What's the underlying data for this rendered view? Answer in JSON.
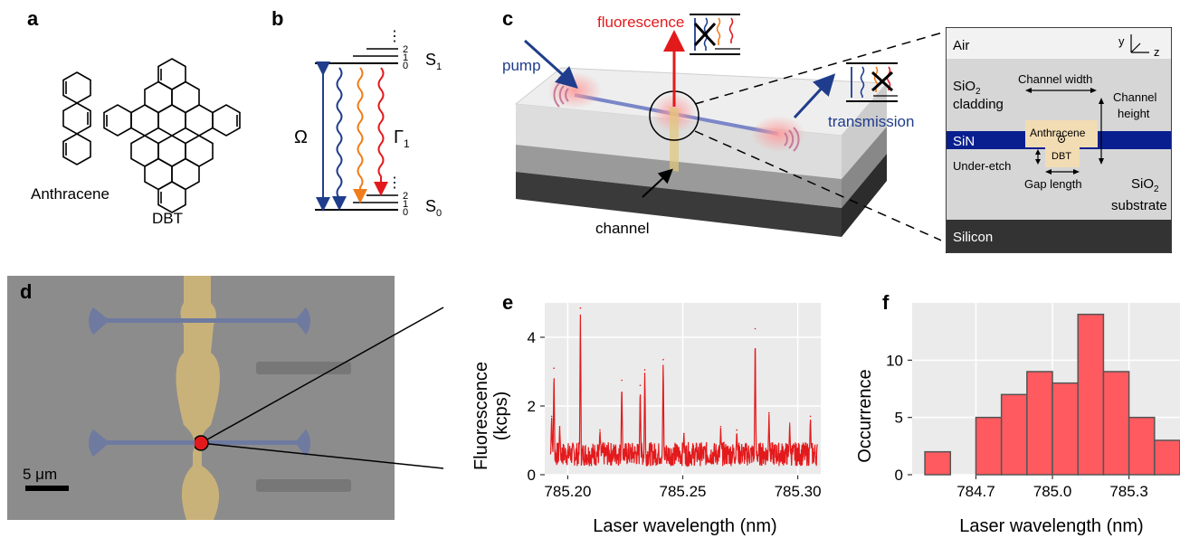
{
  "panels": {
    "a": {
      "label": "a",
      "molecules": [
        "Anthracene",
        "DBT"
      ]
    },
    "b": {
      "label": "b",
      "upper_state": "S",
      "upper_sub": "1",
      "lower_state": "S",
      "lower_sub": "0",
      "omega": "Ω",
      "gamma": "Γ",
      "gamma_sub": "1",
      "vib_levels": [
        "0",
        "1",
        "2"
      ],
      "dots": "⋮"
    },
    "c": {
      "label": "c",
      "fluorescence": "fluorescence",
      "pump": "pump",
      "transmission": "transmission",
      "channel": "channel",
      "cross_section": {
        "air": "Air",
        "sio2_top": "SiO",
        "sio2_top_sub": "2",
        "cladding": "cladding",
        "channel_width": "Channel width",
        "channel_height_1": "Channel",
        "channel_height_2": "height",
        "anthracene": "Anthracene",
        "sin": "SiN",
        "dbt": "DBT",
        "under_etch": "Under-etch",
        "gap_length": "Gap length",
        "sio2_bot": "SiO",
        "sio2_bot_sub": "2",
        "substrate": "substrate",
        "silicon": "Silicon",
        "axis_y": "y",
        "axis_z": "z"
      }
    },
    "d": {
      "label": "d",
      "scalebar": "5 μm"
    },
    "e": {
      "label": "e",
      "ylabel_1": "Fluorescence",
      "ylabel_2": "(kcps)",
      "xlabel": "Laser wavelength (nm)"
    },
    "f": {
      "label": "f",
      "ylabel": "Occurrence",
      "xlabel": "Laser wavelength (nm)"
    }
  },
  "colors": {
    "pump_blue": "#1f3d8c",
    "fluorescence_red": "#e31a1c",
    "orange": "#f07d1a",
    "sin_blue": "#0a1f8f",
    "anthracene": "#f2dcb3",
    "hist_fill": "#ff5a5f",
    "plot_bg": "#ebebeb"
  },
  "chart_data": [
    {
      "type": "line",
      "panel": "e",
      "xlabel": "Laser wavelength (nm)",
      "ylabel": "Fluorescence (kcps)",
      "xlim": [
        785.19,
        785.31
      ],
      "ylim": [
        0,
        5
      ],
      "xticks": [
        "785.20",
        "785.25",
        "785.30"
      ],
      "yticks": [
        "0",
        "2",
        "4"
      ],
      "baseline": 0.6,
      "series": [
        {
          "color": "#e31a1c",
          "peaks": [
            {
              "x": 785.193,
              "y": 1.7
            },
            {
              "x": 785.194,
              "y": 3.1
            },
            {
              "x": 785.1965,
              "y": 1.4
            },
            {
              "x": 785.2055,
              "y": 4.85
            },
            {
              "x": 785.214,
              "y": 1.3
            },
            {
              "x": 785.2235,
              "y": 2.75
            },
            {
              "x": 785.2315,
              "y": 2.6
            },
            {
              "x": 785.2335,
              "y": 3.05
            },
            {
              "x": 785.2415,
              "y": 3.35
            },
            {
              "x": 785.2505,
              "y": 1.2
            },
            {
              "x": 785.2665,
              "y": 1.4
            },
            {
              "x": 785.2735,
              "y": 1.3
            },
            {
              "x": 785.2815,
              "y": 4.25
            },
            {
              "x": 785.2875,
              "y": 1.8
            },
            {
              "x": 785.2965,
              "y": 1.5
            },
            {
              "x": 785.3055,
              "y": 1.7
            }
          ]
        }
      ],
      "grid": true
    },
    {
      "type": "bar",
      "panel": "f",
      "xlabel": "Laser wavelength (nm)",
      "ylabel": "Occurrence",
      "xlim": [
        784.45,
        785.5
      ],
      "ylim": [
        0,
        15
      ],
      "xticks": [
        "784.7",
        "785.0",
        "785.3"
      ],
      "yticks": [
        "0",
        "5",
        "10"
      ],
      "bin_width": 0.1,
      "bins": [
        {
          "x": 784.55,
          "value": 2
        },
        {
          "x": 784.65,
          "value": 0
        },
        {
          "x": 784.75,
          "value": 5
        },
        {
          "x": 784.85,
          "value": 7
        },
        {
          "x": 784.95,
          "value": 9
        },
        {
          "x": 785.05,
          "value": 8
        },
        {
          "x": 785.15,
          "value": 14
        },
        {
          "x": 785.25,
          "value": 9
        },
        {
          "x": 785.35,
          "value": 5
        },
        {
          "x": 785.45,
          "value": 3
        }
      ],
      "grid": true
    }
  ]
}
